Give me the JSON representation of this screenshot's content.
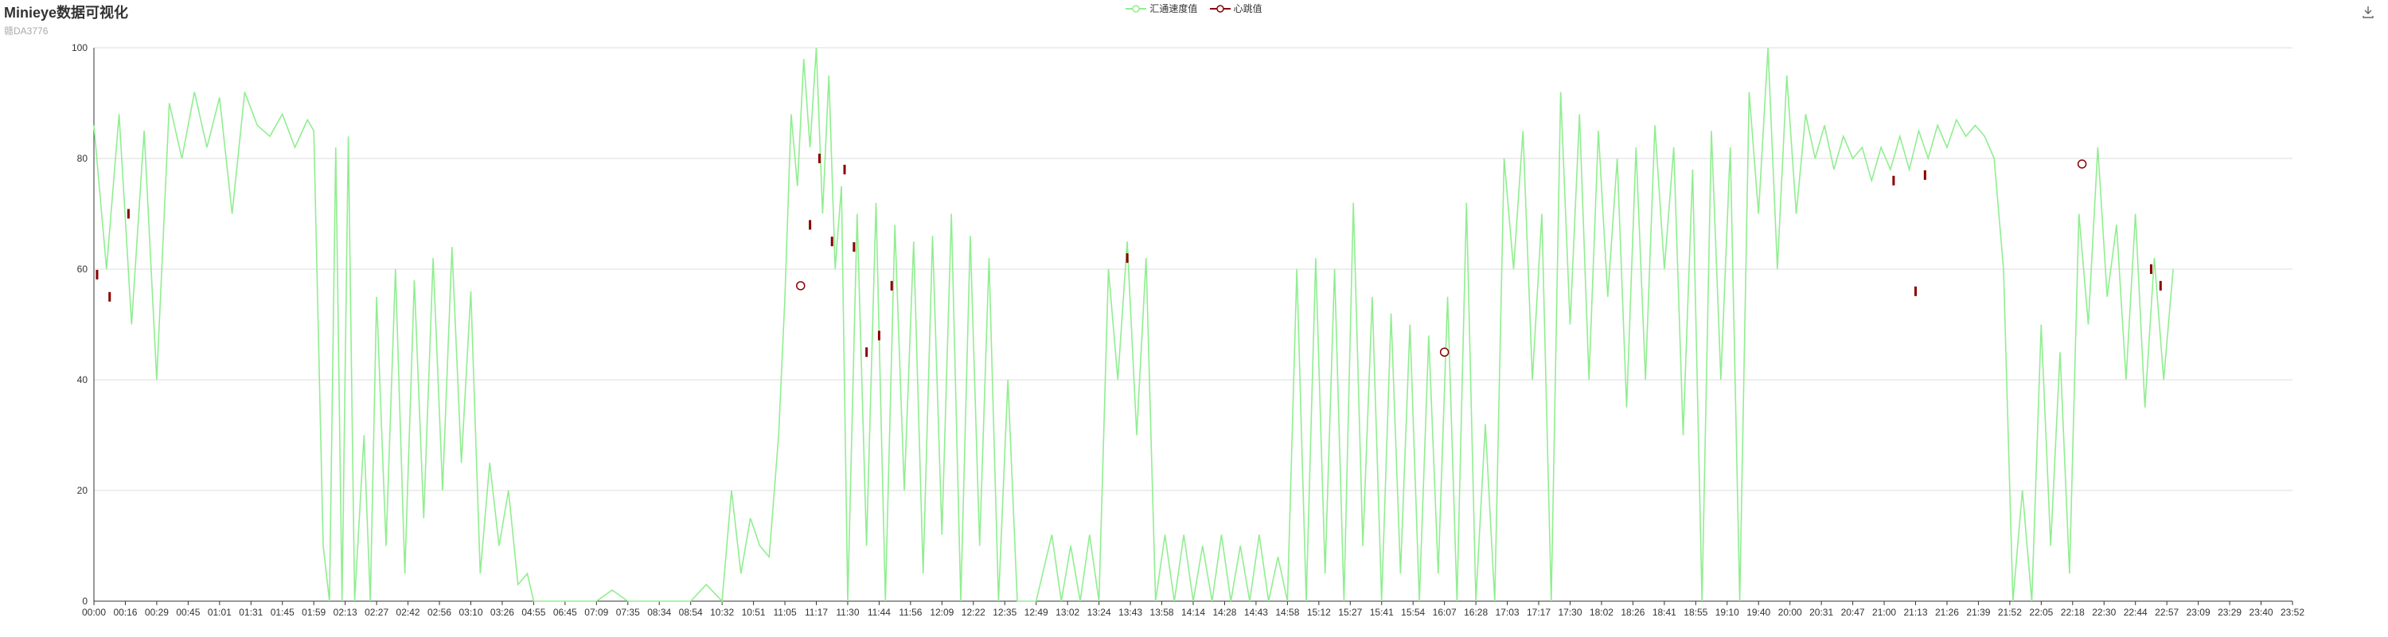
{
  "header": {
    "title": "Minieye数据可视化",
    "subtitle": "赣DA3776"
  },
  "toolbox": {
    "download_icon": "download-icon"
  },
  "chart_data": {
    "type": "line",
    "legend": [
      "汇通速度值",
      "心跳值"
    ],
    "legend_position": "top-center",
    "colors": {
      "speed": "#90ee90",
      "heartbeat": "#8b0000",
      "axis": "#333333",
      "grid": "#dddddd"
    },
    "ylim": [
      0,
      100
    ],
    "yticks": [
      0,
      20,
      40,
      60,
      80,
      100
    ],
    "grid": true,
    "xticks": [
      "00:00",
      "00:16",
      "00:29",
      "00:45",
      "01:01",
      "01:31",
      "01:45",
      "01:59",
      "02:13",
      "02:27",
      "02:42",
      "02:56",
      "03:10",
      "03:26",
      "04:55",
      "06:45",
      "07:09",
      "07:35",
      "08:34",
      "08:54",
      "10:32",
      "10:51",
      "11:05",
      "11:17",
      "11:30",
      "11:44",
      "11:56",
      "12:09",
      "12:22",
      "12:35",
      "12:49",
      "13:02",
      "13:24",
      "13:43",
      "13:58",
      "14:14",
      "14:28",
      "14:43",
      "14:58",
      "15:12",
      "15:27",
      "15:41",
      "15:54",
      "16:07",
      "16:28",
      "17:03",
      "17:17",
      "17:30",
      "18:02",
      "18:26",
      "18:41",
      "18:55",
      "19:10",
      "19:40",
      "20:00",
      "20:31",
      "20:47",
      "21:00",
      "21:13",
      "21:26",
      "21:39",
      "21:52",
      "22:05",
      "22:18",
      "22:30",
      "22:44",
      "22:57",
      "23:09",
      "23:29",
      "23:40",
      "23:52"
    ],
    "series": [
      {
        "name": "汇通速度值",
        "type": "line",
        "segments": [
          [
            0,
            86
          ],
          [
            0.4,
            60
          ],
          [
            0.8,
            88
          ],
          [
            1.2,
            50
          ],
          [
            1.6,
            85
          ],
          [
            2.0,
            40
          ],
          [
            2.4,
            90
          ],
          [
            2.8,
            80
          ],
          [
            3.2,
            92
          ],
          [
            3.6,
            82
          ],
          [
            4.0,
            91
          ],
          [
            4.4,
            70
          ],
          [
            4.8,
            92
          ],
          [
            5.2,
            86
          ],
          [
            5.6,
            84
          ],
          [
            6.0,
            88
          ],
          [
            6.4,
            82
          ],
          [
            6.8,
            87
          ],
          [
            7.0,
            85
          ],
          [
            7.3,
            10
          ],
          [
            7.5,
            0
          ],
          [
            7.7,
            82
          ],
          [
            7.9,
            0
          ],
          [
            8.1,
            84
          ],
          [
            8.3,
            0
          ],
          [
            8.6,
            30
          ],
          [
            8.8,
            0
          ],
          [
            9.0,
            55
          ],
          [
            9.3,
            10
          ],
          [
            9.6,
            60
          ],
          [
            9.9,
            5
          ],
          [
            10.2,
            58
          ],
          [
            10.5,
            15
          ],
          [
            10.8,
            62
          ],
          [
            11.1,
            20
          ],
          [
            11.4,
            64
          ],
          [
            11.7,
            25
          ],
          [
            12.0,
            56
          ],
          [
            12.3,
            5
          ],
          [
            12.6,
            25
          ],
          [
            12.9,
            10
          ],
          [
            13.2,
            20
          ],
          [
            13.5,
            3
          ],
          [
            13.8,
            5
          ],
          [
            14.0,
            0
          ],
          [
            14.5,
            0
          ],
          [
            15,
            0
          ],
          [
            16,
            0
          ],
          [
            16.5,
            2
          ],
          [
            17,
            0
          ],
          [
            18,
            0
          ],
          [
            19,
            0
          ],
          [
            19.5,
            3
          ],
          [
            20,
            0
          ],
          [
            20.3,
            20
          ],
          [
            20.6,
            5
          ],
          [
            20.9,
            15
          ],
          [
            21.2,
            10
          ],
          [
            21.5,
            8
          ],
          [
            21.8,
            30
          ],
          [
            22.0,
            55
          ],
          [
            22.2,
            88
          ],
          [
            22.4,
            75
          ],
          [
            22.6,
            98
          ],
          [
            22.8,
            82
          ],
          [
            23.0,
            100
          ],
          [
            23.2,
            70
          ],
          [
            23.4,
            95
          ],
          [
            23.6,
            60
          ],
          [
            23.8,
            75
          ],
          [
            24.0,
            0
          ],
          [
            24.3,
            70
          ],
          [
            24.6,
            10
          ],
          [
            24.9,
            72
          ],
          [
            25.2,
            0
          ],
          [
            25.5,
            68
          ],
          [
            25.8,
            20
          ],
          [
            26.1,
            65
          ],
          [
            26.4,
            5
          ],
          [
            26.7,
            66
          ],
          [
            27.0,
            12
          ],
          [
            27.3,
            70
          ],
          [
            27.6,
            0
          ],
          [
            27.9,
            66
          ],
          [
            28.2,
            10
          ],
          [
            28.5,
            62
          ],
          [
            28.8,
            0
          ],
          [
            29.1,
            40
          ],
          [
            29.4,
            0
          ],
          [
            30,
            0
          ],
          [
            30.5,
            12
          ],
          [
            30.8,
            0
          ],
          [
            31.1,
            10
          ],
          [
            31.4,
            0
          ],
          [
            31.7,
            12
          ],
          [
            32.0,
            0
          ],
          [
            32.3,
            60
          ],
          [
            32.6,
            40
          ],
          [
            32.9,
            65
          ],
          [
            33.2,
            30
          ],
          [
            33.5,
            62
          ],
          [
            33.8,
            0
          ],
          [
            34.1,
            12
          ],
          [
            34.4,
            0
          ],
          [
            34.7,
            12
          ],
          [
            35.0,
            0
          ],
          [
            35.3,
            10
          ],
          [
            35.6,
            0
          ],
          [
            35.9,
            12
          ],
          [
            36.2,
            0
          ],
          [
            36.5,
            10
          ],
          [
            36.8,
            0
          ],
          [
            37.1,
            12
          ],
          [
            37.4,
            0
          ],
          [
            37.7,
            8
          ],
          [
            38.0,
            0
          ],
          [
            38.3,
            60
          ],
          [
            38.6,
            0
          ],
          [
            38.9,
            62
          ],
          [
            39.2,
            5
          ],
          [
            39.5,
            60
          ],
          [
            39.8,
            0
          ],
          [
            40.1,
            72
          ],
          [
            40.4,
            10
          ],
          [
            40.7,
            55
          ],
          [
            41.0,
            0
          ],
          [
            41.3,
            52
          ],
          [
            41.6,
            5
          ],
          [
            41.9,
            50
          ],
          [
            42.2,
            0
          ],
          [
            42.5,
            48
          ],
          [
            42.8,
            5
          ],
          [
            43.1,
            55
          ],
          [
            43.4,
            0
          ],
          [
            43.7,
            72
          ],
          [
            44.0,
            0
          ],
          [
            44.3,
            32
          ],
          [
            44.6,
            0
          ],
          [
            44.9,
            80
          ],
          [
            45.2,
            60
          ],
          [
            45.5,
            85
          ],
          [
            45.8,
            40
          ],
          [
            46.1,
            70
          ],
          [
            46.4,
            0
          ],
          [
            46.7,
            92
          ],
          [
            47.0,
            50
          ],
          [
            47.3,
            88
          ],
          [
            47.6,
            40
          ],
          [
            47.9,
            85
          ],
          [
            48.2,
            55
          ],
          [
            48.5,
            80
          ],
          [
            48.8,
            35
          ],
          [
            49.1,
            82
          ],
          [
            49.4,
            40
          ],
          [
            49.7,
            86
          ],
          [
            50.0,
            60
          ],
          [
            50.3,
            82
          ],
          [
            50.6,
            30
          ],
          [
            50.9,
            78
          ],
          [
            51.2,
            0
          ],
          [
            51.5,
            85
          ],
          [
            51.8,
            40
          ],
          [
            52.1,
            82
          ],
          [
            52.4,
            0
          ],
          [
            52.7,
            92
          ],
          [
            53.0,
            70
          ],
          [
            53.3,
            100
          ],
          [
            53.6,
            60
          ],
          [
            53.9,
            95
          ],
          [
            54.2,
            70
          ],
          [
            54.5,
            88
          ],
          [
            54.8,
            80
          ],
          [
            55.1,
            86
          ],
          [
            55.4,
            78
          ],
          [
            55.7,
            84
          ],
          [
            56.0,
            80
          ],
          [
            56.3,
            82
          ],
          [
            56.6,
            76
          ],
          [
            56.9,
            82
          ],
          [
            57.2,
            78
          ],
          [
            57.5,
            84
          ],
          [
            57.8,
            78
          ],
          [
            58.1,
            85
          ],
          [
            58.4,
            80
          ],
          [
            58.7,
            86
          ],
          [
            59.0,
            82
          ],
          [
            59.3,
            87
          ],
          [
            59.6,
            84
          ],
          [
            59.9,
            86
          ],
          [
            60.2,
            84
          ],
          [
            60.5,
            80
          ],
          [
            60.8,
            60
          ],
          [
            61.1,
            0
          ],
          [
            61.4,
            20
          ],
          [
            61.7,
            0
          ],
          [
            62.0,
            50
          ],
          [
            62.3,
            10
          ],
          [
            62.6,
            45
          ],
          [
            62.9,
            5
          ],
          [
            63.2,
            70
          ],
          [
            63.5,
            50
          ],
          [
            63.8,
            82
          ],
          [
            64.1,
            55
          ],
          [
            64.4,
            68
          ],
          [
            64.7,
            40
          ],
          [
            65.0,
            70
          ],
          [
            65.3,
            35
          ],
          [
            65.6,
            62
          ],
          [
            65.9,
            40
          ],
          [
            66.2,
            60
          ]
        ]
      },
      {
        "name": "心跳值",
        "type": "scatter",
        "markers": [
          [
            22.5,
            57
          ],
          [
            43.0,
            45
          ],
          [
            63.3,
            79
          ]
        ],
        "bars": [
          [
            0.1,
            59
          ],
          [
            0.5,
            55
          ],
          [
            1.1,
            70
          ],
          [
            22.8,
            68
          ],
          [
            23.1,
            80
          ],
          [
            23.5,
            65
          ],
          [
            23.9,
            78
          ],
          [
            24.2,
            64
          ],
          [
            24.6,
            45
          ],
          [
            25.0,
            48
          ],
          [
            25.4,
            57
          ],
          [
            32.9,
            62
          ],
          [
            57.3,
            76
          ],
          [
            58.0,
            56
          ],
          [
            58.3,
            77
          ],
          [
            65.5,
            60
          ],
          [
            65.8,
            57
          ]
        ]
      }
    ]
  }
}
